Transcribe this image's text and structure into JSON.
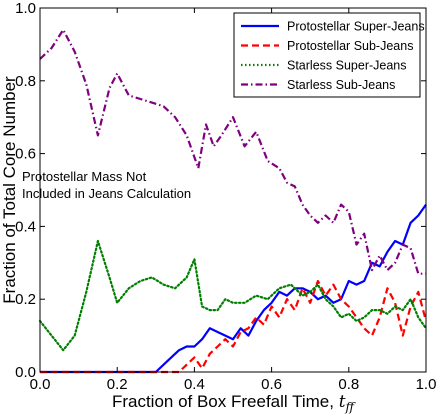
{
  "chart_data": {
    "type": "line",
    "xlabel": "Fraction of Box Freefall Time, ",
    "xlabel_math": "t",
    "xlabel_sub": "ff",
    "ylabel": "Fraction of Total Core Number",
    "xlim": [
      0.0,
      1.0
    ],
    "ylim": [
      0.0,
      1.0
    ],
    "x_ticks": [
      "0.0",
      "0.2",
      "0.4",
      "0.6",
      "0.8",
      "1.0"
    ],
    "y_ticks": [
      "0.0",
      "0.2",
      "0.4",
      "0.6",
      "0.8",
      "1.0"
    ],
    "grid": false,
    "legend_position": "top-right",
    "annotation": [
      "Protostellar Mass Not",
      "Included in Jeans Calculation"
    ],
    "series": [
      {
        "name": "Protostellar Super-Jeans",
        "color": "#0000ff",
        "dash": "solid",
        "x": [
          0.0,
          0.3,
          0.33,
          0.36,
          0.38,
          0.4,
          0.42,
          0.44,
          0.46,
          0.48,
          0.5,
          0.52,
          0.54,
          0.56,
          0.58,
          0.6,
          0.62,
          0.64,
          0.66,
          0.68,
          0.7,
          0.72,
          0.74,
          0.76,
          0.78,
          0.8,
          0.82,
          0.84,
          0.86,
          0.88,
          0.9,
          0.92,
          0.94,
          0.96,
          0.98,
          1.0
        ],
        "y": [
          0.0,
          0.0,
          0.03,
          0.06,
          0.07,
          0.07,
          0.09,
          0.12,
          0.11,
          0.1,
          0.09,
          0.12,
          0.1,
          0.14,
          0.17,
          0.19,
          0.22,
          0.21,
          0.23,
          0.23,
          0.22,
          0.2,
          0.21,
          0.19,
          0.2,
          0.25,
          0.24,
          0.25,
          0.3,
          0.29,
          0.33,
          0.36,
          0.35,
          0.41,
          0.43,
          0.46
        ]
      },
      {
        "name": "Protostellar Sub-Jeans",
        "color": "#ff0000",
        "dash": "dashed",
        "x": [
          0.0,
          0.36,
          0.38,
          0.4,
          0.42,
          0.44,
          0.46,
          0.48,
          0.5,
          0.52,
          0.54,
          0.56,
          0.58,
          0.6,
          0.62,
          0.64,
          0.66,
          0.68,
          0.7,
          0.72,
          0.74,
          0.76,
          0.78,
          0.8,
          0.82,
          0.84,
          0.86,
          0.88,
          0.9,
          0.92,
          0.94,
          0.96,
          0.98,
          1.0
        ],
        "y": [
          0.0,
          0.0,
          0.02,
          0.04,
          0.01,
          0.05,
          0.07,
          0.09,
          0.07,
          0.11,
          0.12,
          0.15,
          0.13,
          0.18,
          0.15,
          0.2,
          0.17,
          0.23,
          0.19,
          0.25,
          0.21,
          0.24,
          0.2,
          0.18,
          0.15,
          0.12,
          0.1,
          0.15,
          0.23,
          0.19,
          0.1,
          0.18,
          0.22,
          0.14
        ]
      },
      {
        "name": "Starless Super-Jeans",
        "color": "#008000",
        "dash": "dotted",
        "x": [
          0.0,
          0.03,
          0.06,
          0.09,
          0.12,
          0.15,
          0.18,
          0.2,
          0.23,
          0.26,
          0.29,
          0.32,
          0.35,
          0.38,
          0.4,
          0.42,
          0.44,
          0.46,
          0.48,
          0.5,
          0.53,
          0.56,
          0.59,
          0.62,
          0.65,
          0.68,
          0.7,
          0.72,
          0.74,
          0.76,
          0.78,
          0.8,
          0.82,
          0.84,
          0.86,
          0.88,
          0.9,
          0.92,
          0.94,
          0.96,
          0.98,
          1.0
        ],
        "y": [
          0.14,
          0.1,
          0.06,
          0.1,
          0.22,
          0.36,
          0.26,
          0.19,
          0.23,
          0.25,
          0.26,
          0.24,
          0.23,
          0.26,
          0.31,
          0.18,
          0.17,
          0.17,
          0.2,
          0.19,
          0.19,
          0.21,
          0.2,
          0.23,
          0.24,
          0.21,
          0.22,
          0.24,
          0.2,
          0.18,
          0.15,
          0.16,
          0.14,
          0.15,
          0.17,
          0.17,
          0.16,
          0.18,
          0.17,
          0.2,
          0.15,
          0.12
        ]
      },
      {
        "name": "Starless Sub-Jeans",
        "color": "#800080",
        "dash": "dashdot",
        "x": [
          0.0,
          0.03,
          0.06,
          0.09,
          0.12,
          0.15,
          0.18,
          0.2,
          0.23,
          0.26,
          0.29,
          0.32,
          0.35,
          0.38,
          0.41,
          0.43,
          0.45,
          0.47,
          0.5,
          0.53,
          0.56,
          0.59,
          0.62,
          0.64,
          0.66,
          0.68,
          0.7,
          0.72,
          0.74,
          0.76,
          0.78,
          0.8,
          0.82,
          0.84,
          0.86,
          0.88,
          0.9,
          0.92,
          0.94,
          0.96,
          0.98,
          1.0
        ],
        "y": [
          0.86,
          0.89,
          0.94,
          0.88,
          0.79,
          0.65,
          0.78,
          0.82,
          0.76,
          0.75,
          0.74,
          0.73,
          0.7,
          0.65,
          0.56,
          0.68,
          0.62,
          0.65,
          0.7,
          0.62,
          0.66,
          0.58,
          0.56,
          0.52,
          0.51,
          0.46,
          0.43,
          0.41,
          0.43,
          0.41,
          0.46,
          0.44,
          0.35,
          0.38,
          0.28,
          0.32,
          0.28,
          0.3,
          0.35,
          0.34,
          0.27,
          0.27
        ]
      }
    ]
  }
}
